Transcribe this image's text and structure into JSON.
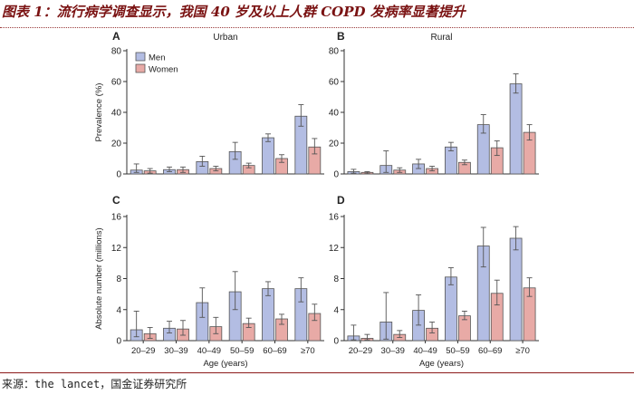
{
  "header": {
    "title": "图表 1：流行病学调查显示，我国 40 岁及以上人群 COPD 发病率显著提升"
  },
  "footer": {
    "source": "来源：the lancet，国金证券研究所"
  },
  "colors": {
    "men": "#b3bde3",
    "women": "#e8aaa6",
    "stroke": "#555555",
    "axis": "#333333"
  },
  "chart_data": [
    {
      "panel": "A",
      "title": "Urban",
      "type": "bar",
      "categories": [
        "20–29",
        "30–39",
        "40–49",
        "50–59",
        "60–69",
        "≥70"
      ],
      "ylabel": "Prevalence (%)",
      "xlabel": "",
      "ylim": [
        0,
        80
      ],
      "yticks": [
        0,
        20,
        40,
        60,
        80
      ],
      "legend": [
        "Men",
        "Women"
      ],
      "legend_position": "top-left",
      "series": [
        {
          "name": "Men",
          "values": [
            2.5,
            2.8,
            8,
            14.5,
            23.5,
            37.5
          ],
          "err_low": [
            1,
            1.5,
            5,
            9.5,
            21,
            31
          ],
          "err_high": [
            6.5,
            4.5,
            11.5,
            20.5,
            26,
            45
          ]
        },
        {
          "name": "Women",
          "values": [
            2,
            2.8,
            3.5,
            5.5,
            10,
            17.5
          ],
          "err_low": [
            0.5,
            1,
            2,
            4,
            7.5,
            13
          ],
          "err_high": [
            3.5,
            4.5,
            5,
            7,
            12.5,
            23
          ]
        }
      ]
    },
    {
      "panel": "B",
      "title": "Rural",
      "type": "bar",
      "categories": [
        "20–29",
        "30–39",
        "40–49",
        "50–59",
        "60–69",
        "≥70"
      ],
      "ylabel": "",
      "xlabel": "",
      "ylim": [
        0,
        80
      ],
      "yticks": [
        0,
        20,
        40,
        60,
        80
      ],
      "series": [
        {
          "name": "Men",
          "values": [
            1.5,
            5.5,
            6.5,
            17.5,
            32,
            58.5
          ],
          "err_low": [
            0.5,
            1,
            3.5,
            15,
            26.5,
            52.5
          ],
          "err_high": [
            3,
            15,
            9.5,
            20.5,
            38.5,
            65
          ]
        },
        {
          "name": "Women",
          "values": [
            1,
            2.5,
            3.5,
            7.5,
            17,
            27
          ],
          "err_low": [
            0.2,
            1,
            2,
            6,
            12,
            22
          ],
          "err_high": [
            1.5,
            4,
            5,
            9,
            21.5,
            32
          ]
        }
      ]
    },
    {
      "panel": "C",
      "title": "",
      "type": "bar",
      "categories": [
        "20–29",
        "30–39",
        "40–49",
        "50–59",
        "60–69",
        "≥70"
      ],
      "ylabel": "Absolute number (millions)",
      "xlabel": "Age (years)",
      "ylim": [
        0,
        16
      ],
      "yticks": [
        0,
        4,
        8,
        12,
        16
      ],
      "series": [
        {
          "name": "Men",
          "values": [
            1.4,
            1.6,
            4.9,
            6.3,
            6.7,
            6.7
          ],
          "err_low": [
            0.5,
            1.0,
            3.0,
            4.0,
            5.8,
            5.0
          ],
          "err_high": [
            3.8,
            2.5,
            6.8,
            8.9,
            7.6,
            8.1
          ]
        },
        {
          "name": "Women",
          "values": [
            0.9,
            1.5,
            1.8,
            2.2,
            2.8,
            3.5
          ],
          "err_low": [
            0.3,
            0.7,
            0.9,
            1.7,
            2.1,
            2.6
          ],
          "err_high": [
            1.7,
            2.6,
            3.0,
            2.9,
            3.4,
            4.7
          ]
        }
      ]
    },
    {
      "panel": "D",
      "title": "",
      "type": "bar",
      "categories": [
        "20–29",
        "30–39",
        "40–49",
        "50–59",
        "60–69",
        "≥70"
      ],
      "ylabel": "",
      "xlabel": "Age (years)",
      "ylim": [
        0,
        16
      ],
      "yticks": [
        0,
        4,
        8,
        12,
        16
      ],
      "series": [
        {
          "name": "Men",
          "values": [
            0.6,
            2.4,
            3.9,
            8.2,
            12.2,
            13.2
          ],
          "err_low": [
            0.1,
            0.2,
            2.0,
            7.2,
            9.5,
            11.7
          ],
          "err_high": [
            2.0,
            6.2,
            5.9,
            9.4,
            14.6,
            14.7
          ]
        },
        {
          "name": "Women",
          "values": [
            0.3,
            0.8,
            1.6,
            3.2,
            6.1,
            6.8
          ],
          "err_low": [
            0.1,
            0.4,
            1.0,
            2.7,
            4.6,
            5.7
          ],
          "err_high": [
            0.8,
            1.3,
            2.4,
            3.8,
            7.8,
            8.1
          ]
        }
      ]
    }
  ]
}
